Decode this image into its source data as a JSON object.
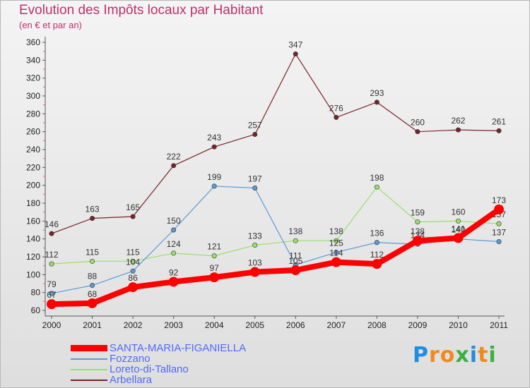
{
  "chart_data": {
    "type": "line",
    "title": "Evolution des Impôts locaux par Habitant",
    "subtitle": "(en € et par an)",
    "categories": [
      "2000",
      "2001",
      "2002",
      "2003",
      "2004",
      "2005",
      "2006",
      "2007",
      "2008",
      "2009",
      "2010",
      "2011"
    ],
    "ylim": [
      60,
      360
    ],
    "yticks": [
      60,
      80,
      100,
      120,
      140,
      160,
      180,
      200,
      220,
      240,
      260,
      280,
      300,
      320,
      340,
      360
    ],
    "grid": false,
    "legend_position": "bottom-left",
    "series": [
      {
        "name": "Arbellara",
        "color": "#7a2328",
        "values": [
          146,
          163,
          165,
          222,
          243,
          257,
          347,
          276,
          293,
          260,
          262,
          261
        ]
      },
      {
        "name": "Loreto-di-Tallano",
        "color": "#99e06a",
        "values": [
          112,
          115,
          115,
          124,
          121,
          133,
          138,
          138,
          198,
          159,
          160,
          157
        ]
      },
      {
        "name": "Fozzano",
        "color": "#5b9ad5",
        "values": [
          79,
          88,
          104,
          150,
          199,
          197,
          111,
          125,
          136,
          134,
          140,
          137
        ]
      },
      {
        "name": "SANTA-MARIA-FIGANIELLA",
        "color": "#ff0000",
        "values": [
          67,
          68,
          86,
          92,
          97,
          103,
          105,
          114,
          112,
          138,
          141,
          173
        ]
      }
    ]
  },
  "legend": [
    {
      "label": "SANTA-MARIA-FIGANIELLA",
      "color": "#ff0000"
    },
    {
      "label": "Fozzano",
      "color": "#5b9ad5"
    },
    {
      "label": "Loreto-di-Tallano",
      "color": "#99e06a"
    },
    {
      "label": "Arbellara",
      "color": "#7a2328"
    }
  ],
  "logo": {
    "text": "Proxiti",
    "colors": [
      "#1f8de0",
      "#f08a1d",
      "#f08a1d",
      "#3cb043",
      "#1f8de0",
      "#f08a1d",
      "#3cb043"
    ]
  }
}
